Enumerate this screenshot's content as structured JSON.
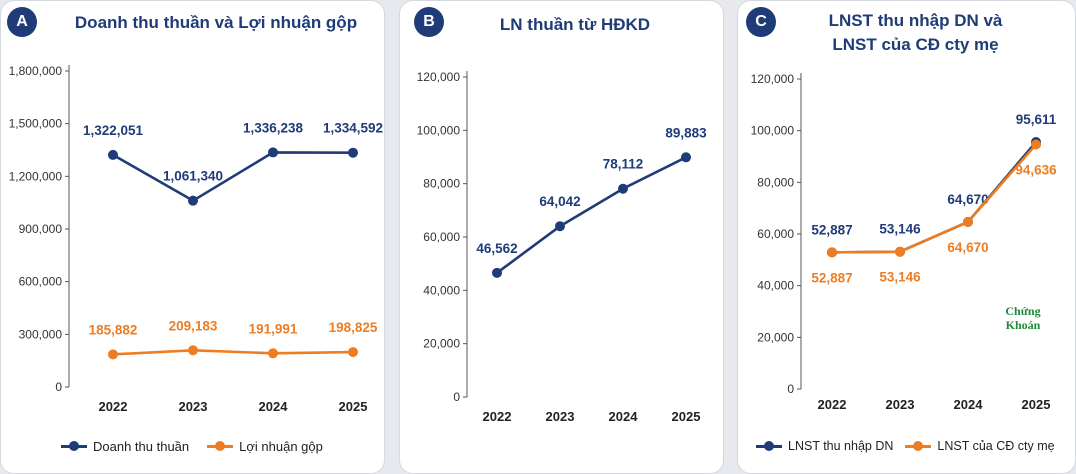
{
  "panels": [
    {
      "badge": "A",
      "title": "Doanh thu thuần và Lợi nhuận gộp"
    },
    {
      "badge": "B",
      "title": "LN thuần từ HĐKD"
    },
    {
      "badge": "C",
      "title_line1": "LNST thu nhập DN và",
      "title_line2": "LNST của CĐ cty mẹ"
    }
  ],
  "legend": {
    "a": [
      "Doanh thu thuần",
      "Lợi nhuận gộp"
    ],
    "c": [
      "LNST thu nhập DN",
      "LNST của CĐ cty mẹ"
    ]
  },
  "watermark": {
    "line1": "Chứng",
    "line2": "Khoán"
  },
  "colors": {
    "blue": "#1f3b78",
    "orange": "#ee7d22",
    "axis": "#555555"
  },
  "chart_data": [
    {
      "type": "line",
      "title": "Doanh thu thuần và Lợi nhuận gộp",
      "x": [
        "2022",
        "2023",
        "2024",
        "2025"
      ],
      "ylim": [
        0,
        1800000
      ],
      "yticks": [
        0,
        300000,
        600000,
        900000,
        1200000,
        1500000,
        1800000
      ],
      "series": [
        {
          "name": "Doanh thu thuần",
          "color": "#1f3b78",
          "values": [
            1322051,
            1061340,
            1336238,
            1334592
          ],
          "labels": [
            "1,322,051",
            "1,061,340",
            "1,336,238",
            "1,334,592"
          ],
          "label_side": "above"
        },
        {
          "name": "Lợi nhuận gộp",
          "color": "#ee7d22",
          "values": [
            185882,
            209183,
            191991,
            198825
          ],
          "labels": [
            "185,882",
            "209,183",
            "191,991",
            "198,825"
          ],
          "label_side": "above"
        }
      ]
    },
    {
      "type": "line",
      "title": "LN thuần từ HĐKD",
      "x": [
        "2022",
        "2023",
        "2024",
        "2025"
      ],
      "ylim": [
        0,
        120000
      ],
      "yticks": [
        0,
        20000,
        40000,
        60000,
        80000,
        100000,
        120000
      ],
      "series": [
        {
          "color": "#1f3b78",
          "values": [
            46562,
            64042,
            78112,
            89883
          ],
          "labels": [
            "46,562",
            "64,042",
            "78,112",
            "89,883"
          ],
          "label_side": "above"
        }
      ]
    },
    {
      "type": "line",
      "title": "LNST thu nhập DN và LNST của CĐ cty mẹ",
      "x": [
        "2022",
        "2023",
        "2024",
        "2025"
      ],
      "ylim": [
        0,
        120000
      ],
      "yticks": [
        0,
        20000,
        40000,
        60000,
        80000,
        100000,
        120000
      ],
      "series": [
        {
          "name": "LNST thu nhập DN",
          "color": "#1f3b78",
          "values": [
            52887,
            53146,
            64670,
            95611
          ],
          "labels": [
            "52,887",
            "53,146",
            "64,670",
            "95,611"
          ],
          "label_side": "above"
        },
        {
          "name": "LNST của CĐ cty mẹ",
          "color": "#ee7d22",
          "values": [
            52887,
            53146,
            64670,
            94636
          ],
          "labels": [
            "52,887",
            "53,146",
            "64,670",
            "94,636"
          ],
          "label_side": "below"
        }
      ]
    }
  ]
}
